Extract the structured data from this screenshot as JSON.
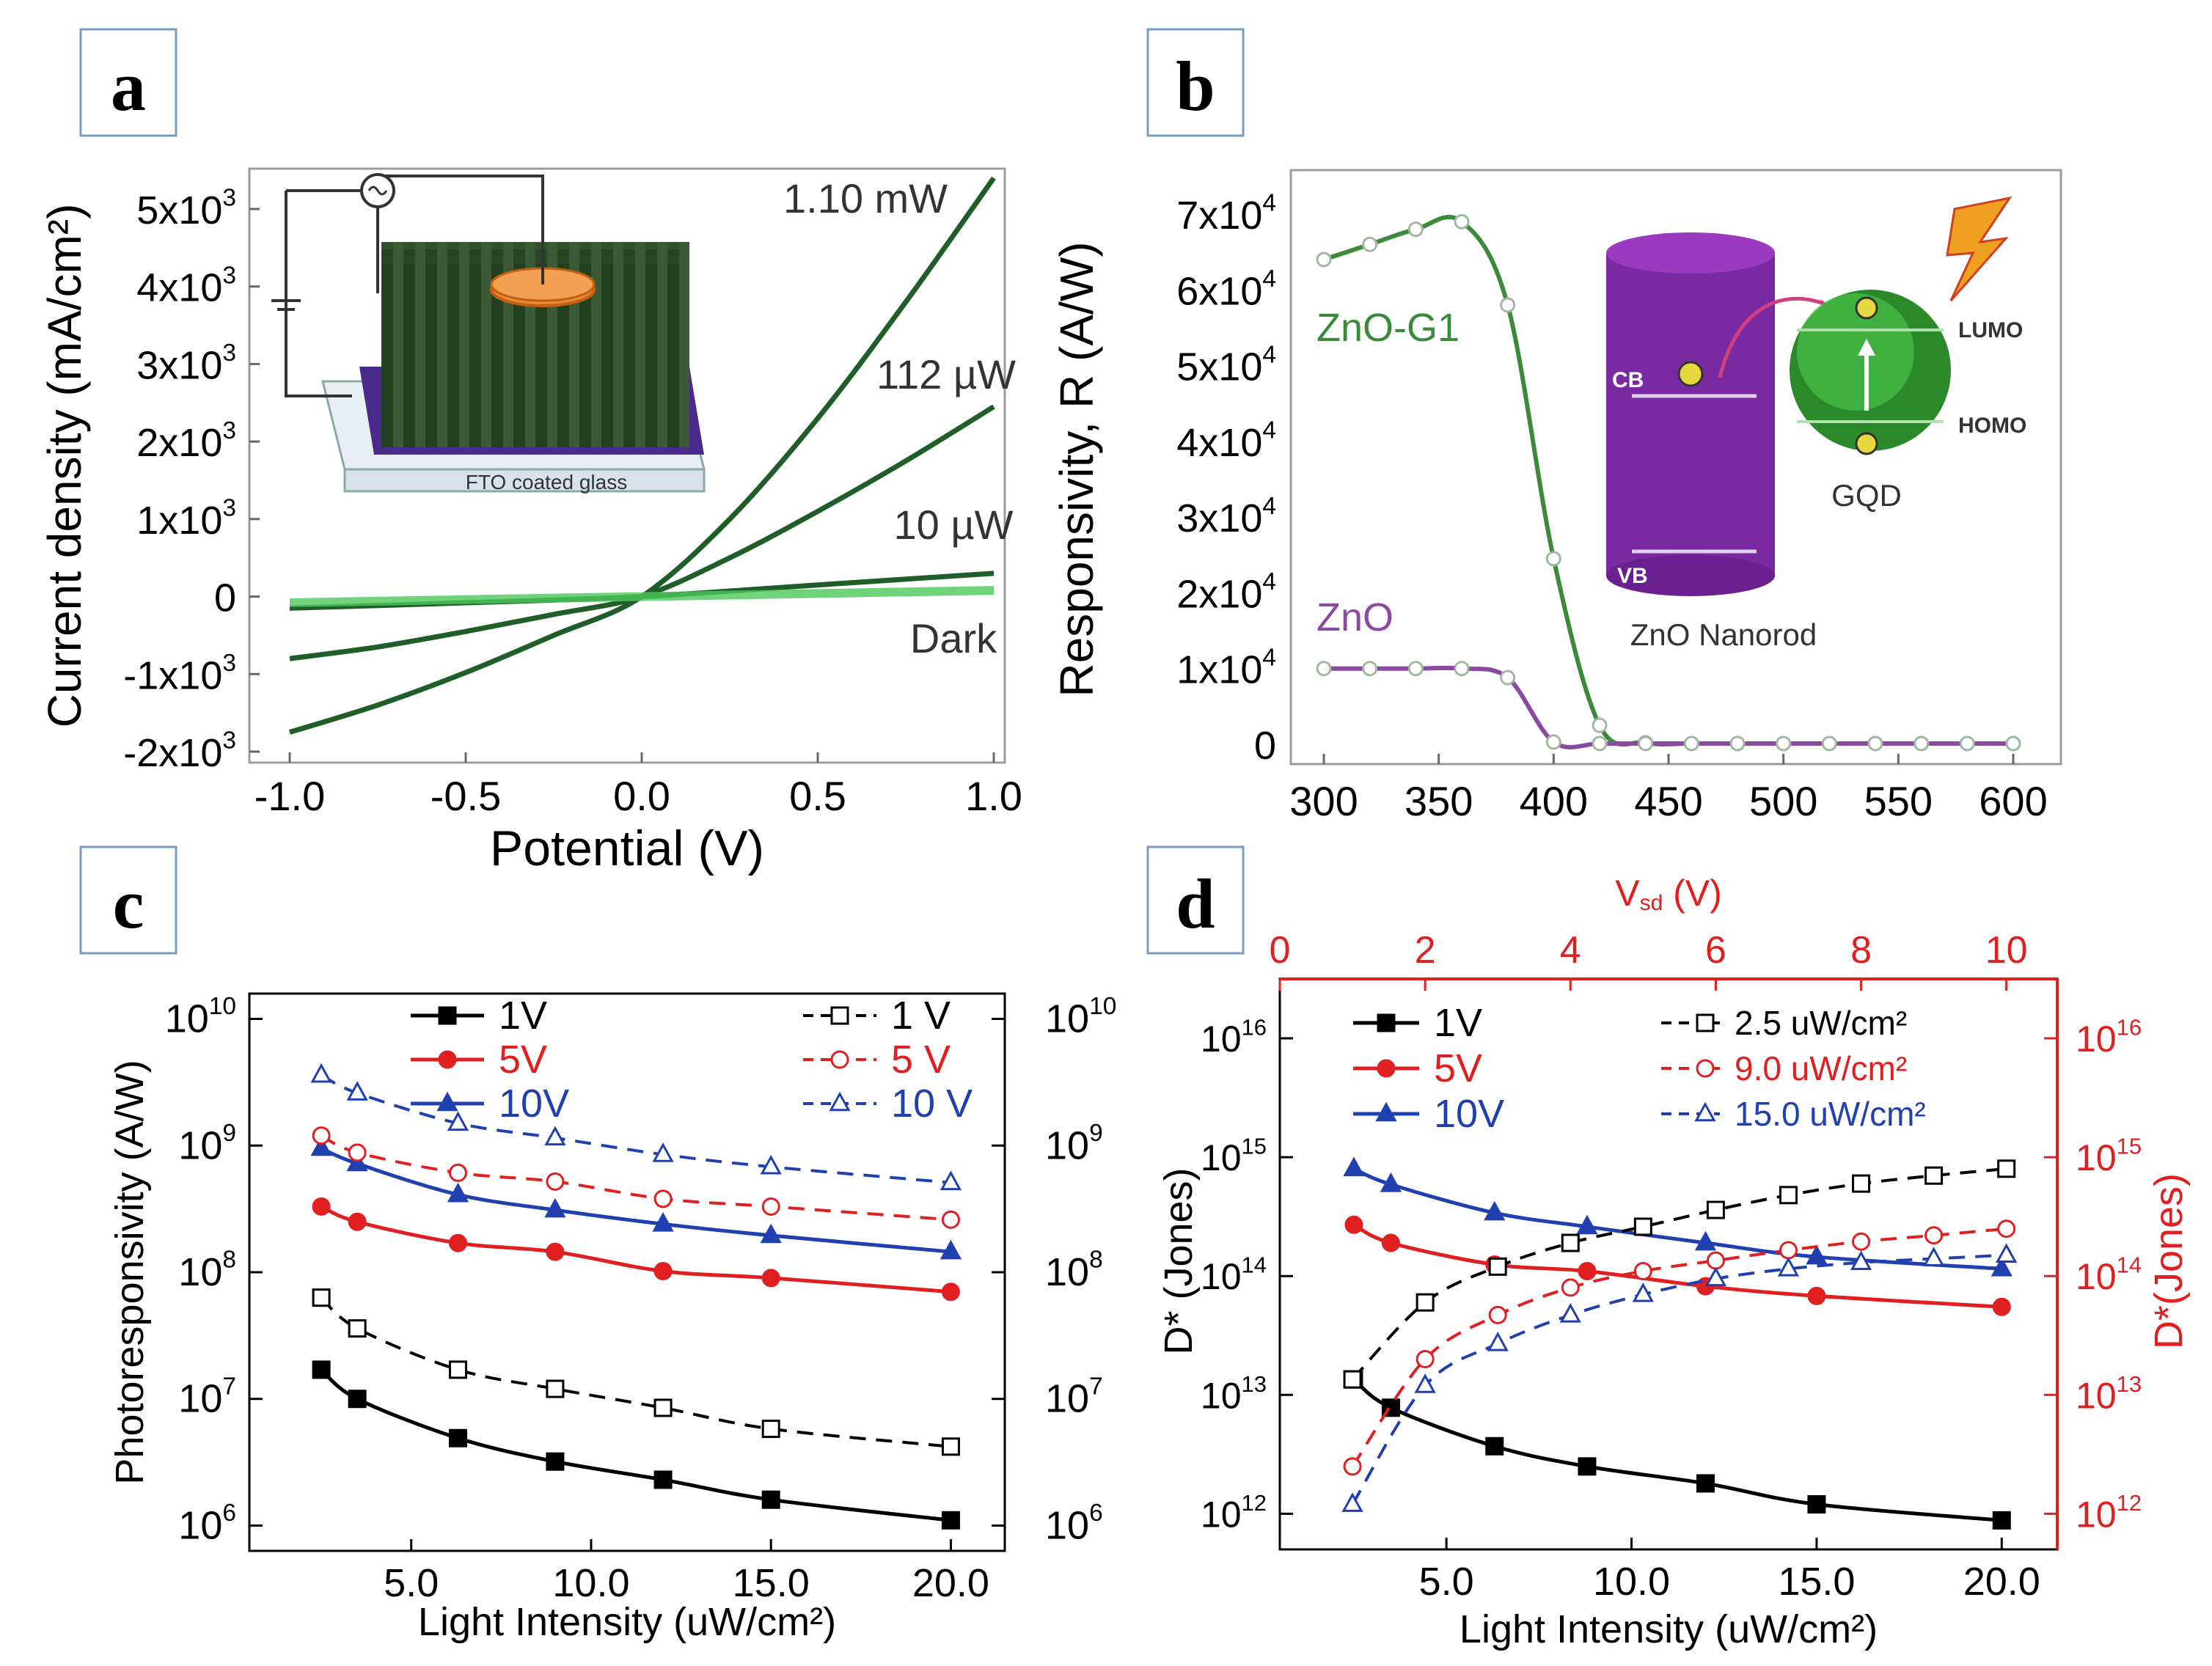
{
  "panels": {
    "a": {
      "label": "a"
    },
    "b": {
      "label": "b"
    },
    "c": {
      "label": "c"
    },
    "d": {
      "label": "d"
    }
  },
  "chart_data": [
    {
      "panel": "a",
      "type": "line",
      "xlabel": "Potential (V)",
      "ylabel": "Current density (mA/cm²)",
      "xlim": [
        -1.0,
        1.0
      ],
      "ylim": [
        -2000,
        5500
      ],
      "xticks": [
        "-1.0",
        "-0.5",
        "0.0",
        "0.5",
        "1.0"
      ],
      "yticks": [
        "-2x10³",
        "-1x10³",
        "0",
        "1x10³",
        "2x10³",
        "3x10³",
        "4x10³",
        "5x10³"
      ],
      "ytick_values": [
        -2000,
        -1000,
        0,
        1000,
        2000,
        3000,
        4000,
        5000
      ],
      "series": [
        {
          "name": "1.10 mW",
          "color": "#1f5e28",
          "x": [
            -1.0,
            -0.75,
            -0.5,
            -0.25,
            0.0,
            0.25,
            0.5,
            0.75,
            1.0
          ],
          "y": [
            -1750,
            -1400,
            -980,
            -500,
            0,
            1000,
            2300,
            3800,
            5400
          ]
        },
        {
          "name": "112 µW",
          "color": "#1f5e28",
          "x": [
            -1.0,
            -0.75,
            -0.5,
            -0.25,
            0.0,
            0.25,
            0.5,
            0.75,
            1.0
          ],
          "y": [
            -800,
            -650,
            -450,
            -230,
            0,
            500,
            1100,
            1750,
            2450
          ]
        },
        {
          "name": "10 µW",
          "color": "#1f5e28",
          "x": [
            -1.0,
            -0.5,
            0.0,
            0.5,
            1.0
          ],
          "y": [
            -150,
            -80,
            0,
            150,
            300
          ]
        },
        {
          "name": "Dark",
          "color": "#4cc75a",
          "x": [
            -1.0,
            -0.5,
            0.0,
            0.5,
            1.0
          ],
          "y": [
            -80,
            -40,
            0,
            40,
            80
          ]
        }
      ],
      "inset": {
        "label": "FTO coated glass"
      }
    },
    {
      "panel": "b",
      "type": "line",
      "xlabel": "",
      "ylabel": "Responsivity, R (A/W)",
      "xlim": [
        300,
        615
      ],
      "ylim": [
        0,
        72000
      ],
      "xticks": [
        "300",
        "350",
        "400",
        "450",
        "500",
        "550",
        "600"
      ],
      "yticks": [
        "0",
        "1x10⁴",
        "2x10⁴",
        "3x10⁴",
        "4x10⁴",
        "5x10⁴",
        "6x10⁴",
        "7x10⁴"
      ],
      "ytick_values": [
        0,
        10000,
        20000,
        30000,
        40000,
        50000,
        60000,
        70000
      ],
      "series": [
        {
          "name": "ZnO-G1",
          "color": "#3a8a3a",
          "x": [
            300,
            320,
            340,
            360,
            380,
            400,
            420,
            440,
            460,
            480,
            500,
            520,
            540,
            560,
            580,
            600
          ],
          "y": [
            64000,
            66000,
            68000,
            69000,
            58000,
            24500,
            2500,
            200,
            100,
            100,
            100,
            100,
            100,
            100,
            100,
            100
          ]
        },
        {
          "name": "ZnO",
          "color": "#8a4aa0",
          "x": [
            300,
            320,
            340,
            360,
            380,
            400,
            420,
            440,
            460,
            480,
            500,
            520,
            540,
            560,
            580,
            600
          ],
          "y": [
            10000,
            10000,
            10000,
            10000,
            8800,
            300,
            100,
            100,
            100,
            100,
            100,
            100,
            100,
            100,
            100,
            100
          ]
        }
      ],
      "inset": {
        "cb": "CB",
        "vb": "VB",
        "lumo": "LUMO",
        "homo": "HOMO",
        "gqd": "GQD",
        "nanorod": "ZnO Nanorod"
      }
    },
    {
      "panel": "c",
      "type": "line",
      "xlabel": "Light Intensity (uW/cm²)",
      "ylabel": "Photoresponsivity (A/W)",
      "xlim": [
        0.5,
        21.5
      ],
      "ylim_log10": [
        5.8,
        10.2
      ],
      "xticks": [
        "5.0",
        "10.0",
        "15.0",
        "20.0"
      ],
      "xtick_values": [
        5,
        10,
        15,
        20
      ],
      "ytick_exponents": [
        6,
        7,
        8,
        9,
        10
      ],
      "series": [
        {
          "name": "1V",
          "color": "#000000",
          "dash": false,
          "marker": "square-filled",
          "x": [
            2.5,
            3.5,
            6.3,
            9.0,
            12.0,
            15.0,
            20.0
          ],
          "y": [
            17000000.0,
            10000000.0,
            4900000.0,
            3200000.0,
            2300000.0,
            1600000.0,
            1100000.0
          ]
        },
        {
          "name": "5V",
          "color": "#e02020",
          "dash": false,
          "marker": "circle-filled",
          "x": [
            2.5,
            3.5,
            6.3,
            9.0,
            12.0,
            15.0,
            20.0
          ],
          "y": [
            330000000.0,
            250000000.0,
            170000000.0,
            145000000.0,
            102000000.0,
            90000000.0,
            70000000.0
          ]
        },
        {
          "name": "10V",
          "color": "#2040b0",
          "dash": false,
          "marker": "triangle-filled",
          "x": [
            2.5,
            3.5,
            6.3,
            9.0,
            12.0,
            15.0,
            20.0
          ],
          "y": [
            950000000.0,
            720000000.0,
            410000000.0,
            310000000.0,
            240000000.0,
            195000000.0,
            145000000.0
          ]
        },
        {
          "name": "1 V",
          "color": "#000000",
          "dash": true,
          "marker": "square-open",
          "x": [
            2.5,
            3.5,
            6.3,
            9.0,
            12.0,
            15.0,
            20.0
          ],
          "y": [
            63000000.0,
            36000000.0,
            17000000.0,
            12000000.0,
            8500000.0,
            5800000.0,
            4200000.0
          ]
        },
        {
          "name": "5 V",
          "color": "#e02020",
          "dash": true,
          "marker": "circle-open",
          "x": [
            2.5,
            3.5,
            6.3,
            9.0,
            12.0,
            15.0,
            20.0
          ],
          "y": [
            1200000000.0,
            880000000.0,
            610000000.0,
            520000000.0,
            380000000.0,
            330000000.0,
            260000000.0
          ]
        },
        {
          "name": "10 V",
          "color": "#2040b0",
          "dash": true,
          "marker": "triangle-open",
          "x": [
            2.5,
            3.5,
            6.3,
            9.0,
            12.0,
            15.0,
            20.0
          ],
          "y": [
            3600000000.0,
            2600000000.0,
            1500000000.0,
            1150000000.0,
            850000000.0,
            680000000.0,
            510000000.0
          ]
        }
      ]
    },
    {
      "panel": "d",
      "type": "line",
      "xlabel": "Light Intensity (uW/cm²)",
      "ylabel": "D* (Jones)",
      "top_xlabel": "V",
      "top_xlabel_sub": "sd",
      "top_xlabel_unit": " (V)",
      "right_ylabel": "D*(Jones)",
      "xlim": [
        0.5,
        21.5
      ],
      "top_xlim": [
        0,
        10.7
      ],
      "ylim_log10": [
        11.7,
        16.5
      ],
      "xticks": [
        "5.0",
        "10.0",
        "15.0",
        "20.0"
      ],
      "xtick_values": [
        5,
        10,
        15,
        20
      ],
      "top_xticks": [
        "0",
        "2",
        "4",
        "6",
        "8",
        "10"
      ],
      "top_xtick_values": [
        0,
        2,
        4,
        6,
        8,
        10
      ],
      "ytick_exponents": [
        12,
        13,
        14,
        15,
        16
      ],
      "accent_color": "#e02020",
      "series": [
        {
          "name": "1V",
          "color": "#000000",
          "dash": false,
          "axis": "bottom",
          "marker": "square-filled",
          "x": [
            2.5,
            3.5,
            6.3,
            8.8,
            12.0,
            15.0,
            20.0
          ],
          "y": [
            13500000000000.0,
            7800000000000.0,
            3700000000000.0,
            2500000000000.0,
            1800000000000.0,
            1200000000000.0,
            880000000000.0
          ]
        },
        {
          "name": "5V",
          "color": "#e02020",
          "dash": false,
          "axis": "bottom",
          "marker": "circle-filled",
          "x": [
            2.5,
            3.5,
            6.3,
            8.8,
            12.0,
            15.0,
            20.0
          ],
          "y": [
            270000000000000.0,
            190000000000000.0,
            125000000000000.0,
            110000000000000.0,
            82000000000000.0,
            68000000000000.0,
            55000000000000.0
          ]
        },
        {
          "name": "10V",
          "color": "#2040b0",
          "dash": false,
          "axis": "bottom",
          "marker": "triangle-filled",
          "x": [
            2.5,
            3.5,
            6.3,
            8.8,
            12.0,
            15.0,
            20.0
          ],
          "y": [
            800000000000000.0,
            590000000000000.0,
            340000000000000.0,
            260000000000000.0,
            190000000000000.0,
            145000000000000.0,
            115000000000000.0
          ]
        },
        {
          "name": "2.5 uW/cm²",
          "color": "#000000",
          "dash": true,
          "axis": "top",
          "marker": "square-open",
          "x": [
            1,
            2,
            3,
            4,
            5,
            6,
            7,
            8,
            9,
            10
          ],
          "y": [
            13500000000000.0,
            60000000000000.0,
            120000000000000.0,
            190000000000000.0,
            260000000000000.0,
            360000000000000.0,
            480000000000000.0,
            600000000000000.0,
            700000000000000.0,
            800000000000000.0
          ]
        },
        {
          "name": "9.0 uW/cm²",
          "color": "#e02020",
          "dash": true,
          "axis": "top",
          "marker": "circle-open",
          "x": [
            1,
            2,
            3,
            4,
            5,
            6,
            7,
            8,
            9,
            10
          ],
          "y": [
            2500000000000.0,
            20000000000000.0,
            47000000000000.0,
            80000000000000.0,
            110000000000000.0,
            135000000000000.0,
            165000000000000.0,
            195000000000000.0,
            220000000000000.0,
            250000000000000.0
          ]
        },
        {
          "name": "15.0 uW/cm²",
          "color": "#2040b0",
          "dash": true,
          "axis": "top",
          "marker": "triangle-open",
          "x": [
            1,
            2,
            3,
            4,
            5,
            6,
            7,
            8,
            9,
            10
          ],
          "y": [
            1200000000000.0,
            12000000000000.0,
            27000000000000.0,
            47000000000000.0,
            70000000000000.0,
            95000000000000.0,
            115000000000000.0,
            130000000000000.0,
            140000000000000.0,
            150000000000000.0
          ]
        }
      ]
    }
  ]
}
